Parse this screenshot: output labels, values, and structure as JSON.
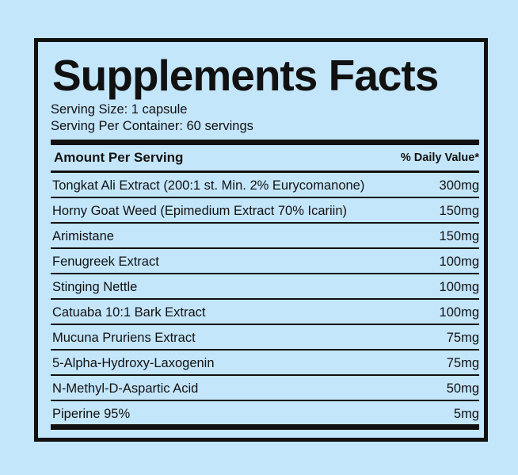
{
  "title": "Supplements Facts",
  "serving_size": "Serving Size: 1 capsule",
  "servings_per_container": "Serving Per Container: 60 servings",
  "header": {
    "amount_label": "Amount Per Serving",
    "daily_value_label": "% Daily Value*"
  },
  "ingredients": [
    {
      "name": "Tongkat Ali Extract (200:1 st. Min. 2% Eurycomanone)",
      "amount": "300mg"
    },
    {
      "name": "Horny Goat Weed (Epimedium Extract 70% Icariin)",
      "amount": "150mg"
    },
    {
      "name": "Arimistane",
      "amount": "150mg"
    },
    {
      "name": "Fenugreek Extract",
      "amount": "100mg"
    },
    {
      "name": "Stinging Nettle",
      "amount": "100mg"
    },
    {
      "name": "Catuaba 10:1 Bark Extract",
      "amount": "100mg"
    },
    {
      "name": "Mucuna Pruriens Extract",
      "amount": "75mg"
    },
    {
      "name": "5-Alpha-Hydroxy-Laxogenin",
      "amount": "75mg"
    },
    {
      "name": "N-Methyl-D-Aspartic Acid",
      "amount": "50mg"
    },
    {
      "name": "Piperine 95%",
      "amount": "5mg"
    }
  ],
  "colors": {
    "background": "#c4e6fb",
    "ink": "#111111"
  }
}
